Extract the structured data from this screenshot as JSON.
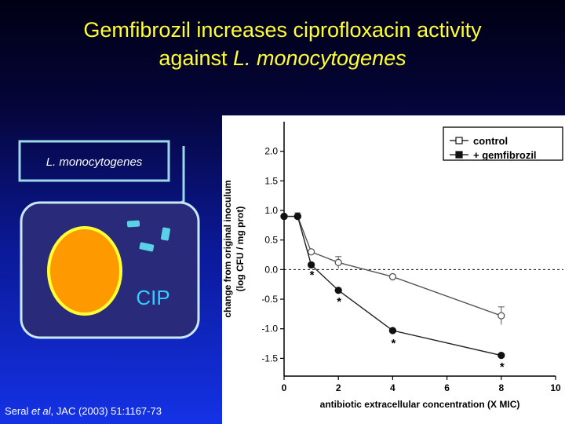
{
  "title": {
    "line1": "Gemfibrozil increases ciprofloxacin activity",
    "line2_prefix": "against ",
    "line2_italic": "L. monocytogenes"
  },
  "diagram": {
    "bacterium_label": "L. monocytogenes",
    "drug_label": "CIP",
    "colors": {
      "cell_fill": "#2a2a7a",
      "border": "#9ad8ea",
      "nucleus": "#ff9900",
      "nucleus_border": "#ffff33",
      "bacteria": "#5ad2e6",
      "drug_text": "#33ccff"
    }
  },
  "citation": {
    "prefix": "Seral ",
    "italic": "et al",
    "suffix": ", JAC (2003) 51:1167-73"
  },
  "chart_data": {
    "type": "line",
    "xlabel": "antibiotic extracellular concentration (X MIC)",
    "ylabel_line1": "change from original inoculum",
    "ylabel_line2": "(log CFU / mg prot)",
    "xlim": [
      0,
      10
    ],
    "ylim": [
      -1.8,
      2.5
    ],
    "xticks": [
      0,
      2,
      4,
      6,
      8,
      10
    ],
    "yticks": [
      2.0,
      1.5,
      1.0,
      0.5,
      0.0,
      -0.5,
      -1.0,
      -1.5
    ],
    "ytick_labels": [
      "2.0",
      "1.5",
      "1.0",
      "0.5",
      "0.0",
      "-0.5",
      "-1.0",
      "-1.5"
    ],
    "reference_line_y": 0,
    "legend_position": "top-right",
    "series": [
      {
        "name": "control",
        "marker": "open-circle",
        "x": [
          0,
          0.5,
          1,
          2,
          4,
          8
        ],
        "y": [
          0.9,
          0.9,
          0.3,
          0.12,
          -0.12,
          -0.78
        ],
        "err": [
          0,
          0.06,
          0,
          0.1,
          0,
          0.15
        ]
      },
      {
        "name": "+ gemfibrozil",
        "marker": "filled-circle",
        "x": [
          0,
          0.5,
          1,
          2,
          4,
          8
        ],
        "y": [
          0.9,
          0.9,
          0.08,
          -0.35,
          -1.03,
          -1.45
        ],
        "err": [
          0,
          0,
          0,
          0,
          0,
          0
        ]
      }
    ],
    "significance_marks": [
      {
        "x": 1,
        "y": -0.05,
        "label": "*"
      },
      {
        "x": 2,
        "y": -0.5,
        "label": "*"
      },
      {
        "x": 4,
        "y": -1.2,
        "label": "*"
      },
      {
        "x": 8,
        "y": -1.6,
        "label": "*"
      }
    ]
  }
}
